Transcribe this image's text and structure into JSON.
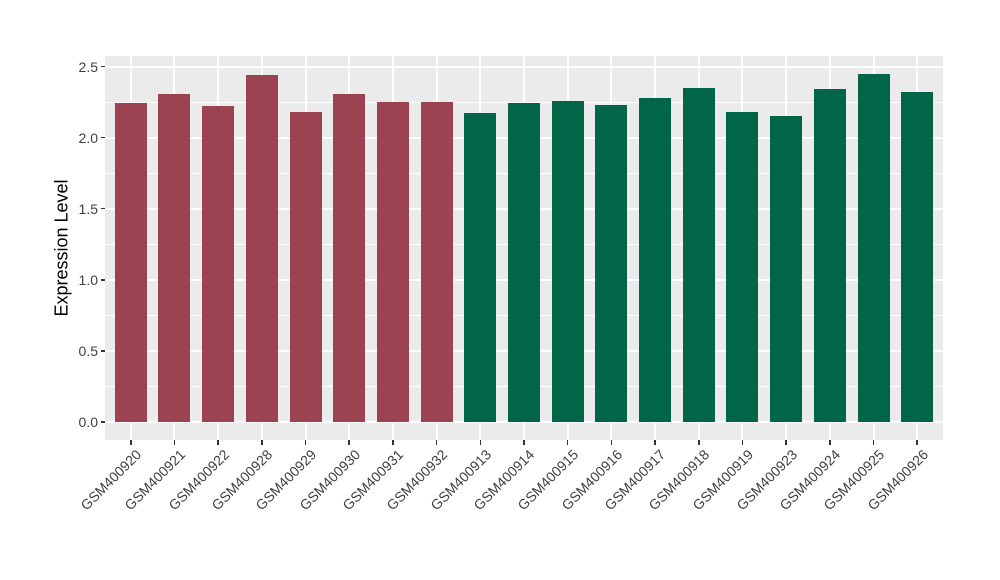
{
  "chart_data": {
    "type": "bar",
    "title": "",
    "xlabel": "",
    "ylabel": "Expression Level",
    "categories": [
      "GSM400920",
      "GSM400921",
      "GSM400922",
      "GSM400928",
      "GSM400929",
      "GSM400930",
      "GSM400931",
      "GSM400932",
      "GSM400913",
      "GSM400914",
      "GSM400915",
      "GSM400916",
      "GSM400917",
      "GSM400918",
      "GSM400919",
      "GSM400923",
      "GSM400924",
      "GSM400925",
      "GSM400926"
    ],
    "values": [
      2.24,
      2.31,
      2.22,
      2.44,
      2.18,
      2.31,
      2.25,
      2.25,
      2.17,
      2.24,
      2.26,
      2.23,
      2.28,
      2.35,
      2.18,
      2.15,
      2.34,
      2.45,
      2.32
    ],
    "bar_group": [
      "maroon",
      "maroon",
      "maroon",
      "maroon",
      "maroon",
      "maroon",
      "maroon",
      "maroon",
      "green",
      "green",
      "green",
      "green",
      "green",
      "green",
      "green",
      "green",
      "green",
      "green",
      "green"
    ],
    "group_colors": {
      "maroon": "#9b4351",
      "green": "#006647"
    },
    "ylim": [
      0,
      2.57
    ],
    "yticks": [
      "0.0",
      "0.5",
      "1.0",
      "1.5",
      "2.0",
      "2.5"
    ],
    "ytick_values": [
      0,
      0.5,
      1,
      1.5,
      2,
      2.5
    ],
    "minor_ytick_values": [
      0.25,
      0.75,
      1.25,
      1.75,
      2.25
    ],
    "grid": "major+minor, white on gray panel",
    "legend": "none",
    "panel_bg": "#ebebeb",
    "grid_color": "#ffffff",
    "axis_text_color": "#404040",
    "axis_title_color": "#000000",
    "tick_mark_color": "#333333"
  }
}
